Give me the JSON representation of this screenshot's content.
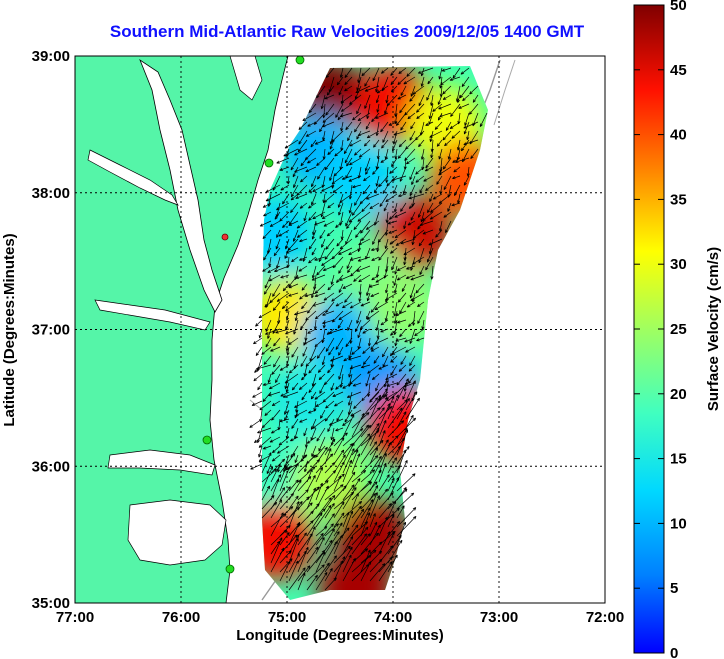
{
  "title": "Southern Mid-Atlantic Raw Velocities 2009/12/05 1400 GMT",
  "x_axis": {
    "label": "Longitude (Degrees:Minutes)",
    "ticks": [
      "77:00",
      "76:00",
      "75:00",
      "74:00",
      "73:00",
      "72:00"
    ]
  },
  "y_axis": {
    "label": "Latitude (Degrees:Minutes)",
    "ticks": [
      "39:00",
      "38:00",
      "37:00",
      "36:00",
      "35:00"
    ]
  },
  "colorbar": {
    "label": "Surface Velocity (cm/s)",
    "ticks": [
      "50",
      "45",
      "40",
      "35",
      "30",
      "25",
      "20",
      "15",
      "10",
      "5",
      "0"
    ],
    "range": [
      0,
      50
    ],
    "colormap": "jet"
  },
  "colors": {
    "land": "#55f5a8",
    "water": "#ffffff",
    "title": "#1010ff",
    "vectors": "#000000",
    "bathymetry": "#999999"
  },
  "chart_data": {
    "type": "heatmap",
    "variant": "surface-current-vector-map",
    "lon_range": [
      -77,
      -72
    ],
    "lat_range": [
      35,
      39
    ],
    "grid": true,
    "colorbar_position": "right",
    "regions": [
      {
        "lon": -74.6,
        "lat": 38.7,
        "speed": 50
      },
      {
        "lon": -74.0,
        "lat": 38.65,
        "speed": 44
      },
      {
        "lon": -73.5,
        "lat": 38.5,
        "speed": 30
      },
      {
        "lon": -74.7,
        "lat": 38.3,
        "speed": 10
      },
      {
        "lon": -74.3,
        "lat": 38.1,
        "speed": 12
      },
      {
        "lon": -73.3,
        "lat": 38.1,
        "speed": 40
      },
      {
        "lon": -73.8,
        "lat": 37.7,
        "speed": 46
      },
      {
        "lon": -75.1,
        "lat": 37.7,
        "speed": 12
      },
      {
        "lon": -74.2,
        "lat": 37.35,
        "speed": 22
      },
      {
        "lon": -75.0,
        "lat": 37.1,
        "speed": 32
      },
      {
        "lon": -74.5,
        "lat": 36.95,
        "speed": 10
      },
      {
        "lon": -73.9,
        "lat": 37.15,
        "speed": 24
      },
      {
        "lon": -74.1,
        "lat": 36.6,
        "speed": 8
      },
      {
        "lon": -74.8,
        "lat": 36.5,
        "speed": 15
      },
      {
        "lon": -75.0,
        "lat": 36.0,
        "speed": 18
      },
      {
        "lon": -74.6,
        "lat": 35.9,
        "speed": 26
      },
      {
        "lon": -73.9,
        "lat": 36.3,
        "speed": 44
      },
      {
        "lon": -75.1,
        "lat": 35.45,
        "speed": 44
      },
      {
        "lon": -74.2,
        "lat": 35.5,
        "speed": 48
      },
      {
        "lon": -74.35,
        "lat": 35.1,
        "speed": 48
      }
    ],
    "mean_flow": {
      "north_region_direction_deg": 220,
      "south_band_direction_deg": 35
    }
  }
}
